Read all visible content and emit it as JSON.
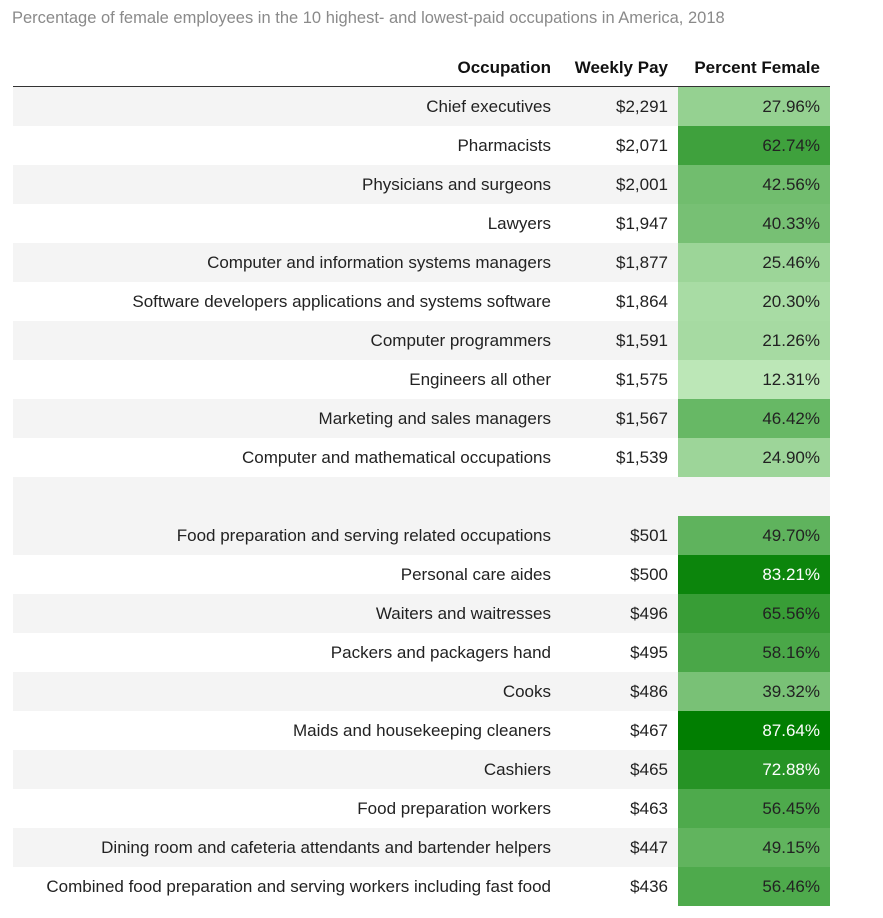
{
  "title": "Percentage of female employees in the 10 highest- and lowest-paid occupations in America, 2018",
  "chart_data": {
    "type": "table",
    "title": "Percentage of female employees in the 10 highest- and lowest-paid occupations in America, 2018",
    "columns": [
      "Occupation",
      "Weekly Pay",
      "Percent Female"
    ],
    "groups": [
      {
        "rows": [
          {
            "occupation": "Chief executives",
            "weekly_pay": "$2,291",
            "percent_female": 27.96
          },
          {
            "occupation": "Pharmacists",
            "weekly_pay": "$2,071",
            "percent_female": 62.74
          },
          {
            "occupation": "Physicians and surgeons",
            "weekly_pay": "$2,001",
            "percent_female": 42.56
          },
          {
            "occupation": "Lawyers",
            "weekly_pay": "$1,947",
            "percent_female": 40.33
          },
          {
            "occupation": "Computer and information systems managers",
            "weekly_pay": "$1,877",
            "percent_female": 25.46
          },
          {
            "occupation": "Software developers applications and systems software",
            "weekly_pay": "$1,864",
            "percent_female": 20.3
          },
          {
            "occupation": "Computer programmers",
            "weekly_pay": "$1,591",
            "percent_female": 21.26
          },
          {
            "occupation": "Engineers all other",
            "weekly_pay": "$1,575",
            "percent_female": 12.31
          },
          {
            "occupation": "Marketing and sales managers",
            "weekly_pay": "$1,567",
            "percent_female": 46.42
          },
          {
            "occupation": "Computer and mathematical occupations",
            "weekly_pay": "$1,539",
            "percent_female": 24.9
          }
        ]
      },
      {
        "rows": [
          {
            "occupation": "Food preparation and serving related occupations",
            "weekly_pay": "$501",
            "percent_female": 49.7
          },
          {
            "occupation": "Personal care aides",
            "weekly_pay": "$500",
            "percent_female": 83.21
          },
          {
            "occupation": "Waiters and waitresses",
            "weekly_pay": "$496",
            "percent_female": 65.56
          },
          {
            "occupation": "Packers and packagers hand",
            "weekly_pay": "$495",
            "percent_female": 58.16
          },
          {
            "occupation": "Cooks",
            "weekly_pay": "$486",
            "percent_female": 39.32
          },
          {
            "occupation": "Maids and housekeeping cleaners",
            "weekly_pay": "$467",
            "percent_female": 87.64
          },
          {
            "occupation": "Cashiers",
            "weekly_pay": "$465",
            "percent_female": 72.88
          },
          {
            "occupation": "Food preparation workers",
            "weekly_pay": "$463",
            "percent_female": 56.45
          },
          {
            "occupation": "Dining room and cafeteria attendants and bartender helpers",
            "weekly_pay": "$447",
            "percent_female": 49.15
          },
          {
            "occupation": "Combined food preparation and serving workers including fast food",
            "weekly_pay": "$436",
            "percent_female": 56.46
          }
        ]
      }
    ],
    "color_scale": {
      "low": "#c2eabd",
      "high": "#007e00"
    }
  }
}
